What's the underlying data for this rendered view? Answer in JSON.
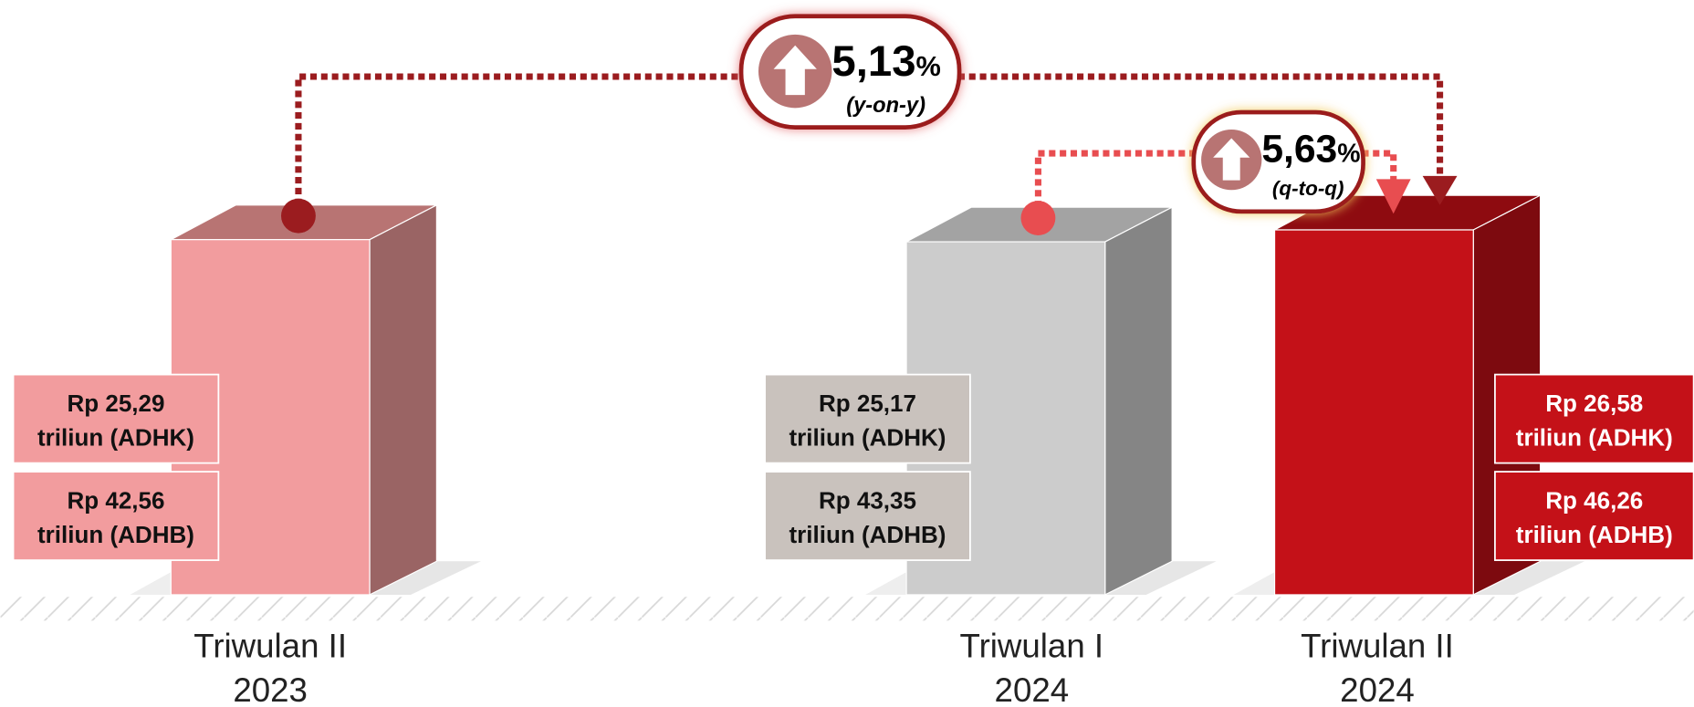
{
  "bars": [
    {
      "category": [
        "Triwulan II",
        "2023"
      ],
      "labels": [
        [
          "Rp 25,29",
          "triliun (ADHK)"
        ],
        [
          "Rp 42,56",
          "triliun (ADHB)"
        ]
      ]
    },
    {
      "category": [
        "Triwulan I",
        "2024"
      ],
      "labels": [
        [
          "Rp 25,17",
          "triliun (ADHK)"
        ],
        [
          "Rp 43,35",
          "triliun (ADHB)"
        ]
      ]
    },
    {
      "category": [
        "Triwulan II",
        "2024"
      ],
      "labels": [
        [
          "Rp 26,58",
          "triliun (ADHK)"
        ],
        [
          "Rp 46,26",
          "triliun (ADHB)"
        ]
      ]
    }
  ],
  "growth_yoy": {
    "value": "5,13",
    "unit": "%",
    "label": "(y-on-y)"
  },
  "growth_qtq": {
    "value": "5,63",
    "unit": "%",
    "label": "(q-to-q)"
  }
}
